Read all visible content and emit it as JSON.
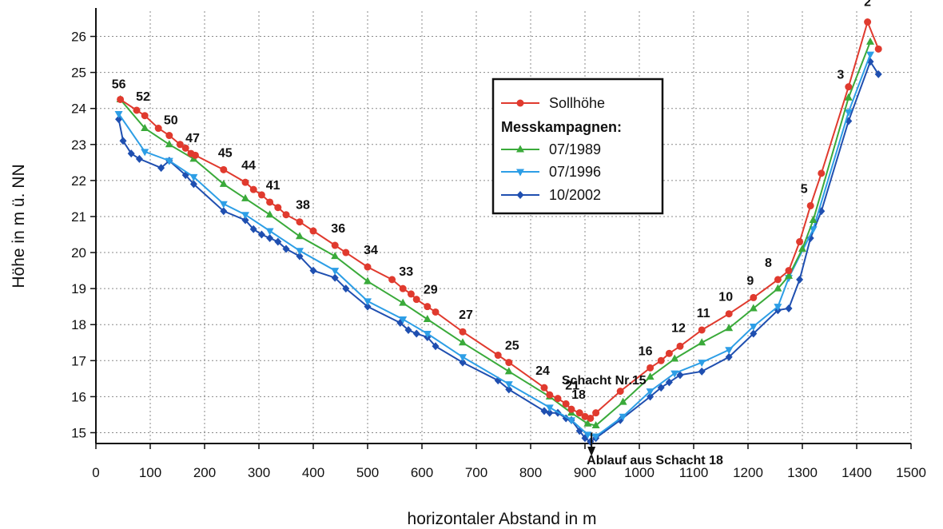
{
  "chart_data": {
    "type": "line",
    "xlabel": "horizontaler Abstand in m",
    "ylabel": "Höhe in m ü. NN",
    "xlim": [
      0,
      1500
    ],
    "ylim": [
      14.7,
      26.7
    ],
    "x_ticks": [
      0,
      100,
      200,
      300,
      400,
      500,
      600,
      700,
      800,
      900,
      1000,
      1100,
      1200,
      1300,
      1400,
      1500
    ],
    "y_ticks": [
      15,
      16,
      17,
      18,
      19,
      20,
      21,
      22,
      23,
      24,
      25,
      26
    ],
    "grid": true,
    "legend_position": "top-center",
    "legend": {
      "heading": "Messkampagnen:",
      "entries": [
        "Sollhöhe",
        "07/1989",
        "07/1996",
        "10/2002"
      ]
    },
    "series": [
      {
        "name": "Sollhöhe",
        "color": "#e03a2e",
        "marker": "circle",
        "x": [
          45,
          75,
          90,
          115,
          135,
          155,
          165,
          175,
          183,
          235,
          275,
          290,
          305,
          320,
          335,
          350,
          375,
          400,
          440,
          460,
          500,
          545,
          565,
          580,
          590,
          610,
          625,
          675,
          740,
          760,
          825,
          835,
          850,
          865,
          875,
          890,
          900,
          910,
          920,
          965,
          1020,
          1040,
          1055,
          1075,
          1115,
          1165,
          1210,
          1255,
          1275,
          1295,
          1315,
          1335,
          1385,
          1420,
          1440
        ],
        "y": [
          24.25,
          23.95,
          23.8,
          23.45,
          23.25,
          23.0,
          22.9,
          22.75,
          22.7,
          22.3,
          21.95,
          21.75,
          21.6,
          21.4,
          21.25,
          21.05,
          20.85,
          20.6,
          20.2,
          20.0,
          19.6,
          19.25,
          19.0,
          18.85,
          18.7,
          18.5,
          18.35,
          17.8,
          17.15,
          16.95,
          16.25,
          16.05,
          15.95,
          15.8,
          15.65,
          15.55,
          15.45,
          15.4,
          15.55,
          16.15,
          16.8,
          17.0,
          17.2,
          17.4,
          17.85,
          18.3,
          18.75,
          19.25,
          19.5,
          20.3,
          21.3,
          22.2,
          24.6,
          26.4,
          25.65
        ]
      },
      {
        "name": "07/1989",
        "color": "#3aaa3a",
        "marker": "triangle-up",
        "x": [
          45,
          90,
          135,
          180,
          235,
          275,
          320,
          375,
          440,
          500,
          565,
          610,
          675,
          760,
          835,
          875,
          905,
          920,
          970,
          1020,
          1065,
          1115,
          1165,
          1210,
          1255,
          1275,
          1300,
          1320,
          1385,
          1425
        ],
        "y": [
          24.25,
          23.45,
          23.0,
          22.6,
          21.9,
          21.5,
          21.05,
          20.45,
          19.9,
          19.2,
          18.6,
          18.15,
          17.5,
          16.7,
          16.0,
          15.55,
          15.25,
          15.2,
          15.85,
          16.55,
          17.05,
          17.5,
          17.9,
          18.45,
          19.0,
          19.35,
          20.1,
          20.9,
          24.3,
          25.85
        ]
      },
      {
        "name": "07/1996",
        "color": "#2d9ee6",
        "marker": "triangle-down",
        "x": [
          42,
          90,
          135,
          180,
          235,
          275,
          320,
          375,
          440,
          500,
          565,
          610,
          675,
          760,
          835,
          875,
          905,
          920,
          970,
          1020,
          1065,
          1115,
          1165,
          1210,
          1255,
          1275,
          1320,
          1385,
          1425
        ],
        "y": [
          23.85,
          22.8,
          22.55,
          22.1,
          21.35,
          21.05,
          20.6,
          20.05,
          19.5,
          18.65,
          18.15,
          17.75,
          17.1,
          16.35,
          15.7,
          15.35,
          14.95,
          14.9,
          15.45,
          16.15,
          16.65,
          16.95,
          17.3,
          17.95,
          18.5,
          19.3,
          20.65,
          23.9,
          25.5
        ]
      },
      {
        "name": "10/2002",
        "color": "#1f4fb0",
        "marker": "diamond",
        "x": [
          42,
          50,
          65,
          80,
          120,
          135,
          165,
          180,
          235,
          275,
          290,
          305,
          320,
          335,
          350,
          375,
          400,
          440,
          460,
          500,
          560,
          575,
          590,
          610,
          625,
          675,
          740,
          760,
          825,
          835,
          850,
          865,
          875,
          890,
          900,
          910,
          920,
          965,
          1020,
          1040,
          1055,
          1075,
          1115,
          1165,
          1210,
          1255,
          1275,
          1295,
          1315,
          1335,
          1385,
          1425,
          1440
        ],
        "y": [
          23.7,
          23.1,
          22.75,
          22.6,
          22.35,
          22.55,
          22.15,
          21.9,
          21.15,
          20.9,
          20.65,
          20.5,
          20.4,
          20.3,
          20.1,
          19.9,
          19.5,
          19.3,
          19.0,
          18.5,
          18.05,
          17.85,
          17.75,
          17.65,
          17.4,
          16.95,
          16.45,
          16.2,
          15.6,
          15.55,
          15.55,
          15.4,
          15.35,
          15.05,
          14.85,
          14.75,
          14.85,
          15.35,
          16.0,
          16.25,
          16.4,
          16.6,
          16.7,
          17.1,
          17.75,
          18.4,
          18.45,
          19.25,
          20.4,
          21.15,
          23.65,
          25.3,
          24.95
        ]
      }
    ],
    "annotations": [
      {
        "text": "56",
        "x": 45,
        "y": 24.25
      },
      {
        "text": "52",
        "x": 75,
        "y": 23.95
      },
      {
        "text": "50",
        "x": 135,
        "y": 23.25
      },
      {
        "text": "47",
        "x": 175,
        "y": 22.75
      },
      {
        "text": "45",
        "x": 235,
        "y": 22.3
      },
      {
        "text": "44",
        "x": 275,
        "y": 21.95
      },
      {
        "text": "41",
        "x": 320,
        "y": 21.4
      },
      {
        "text": "38",
        "x": 375,
        "y": 20.85
      },
      {
        "text": "36",
        "x": 440,
        "y": 20.2
      },
      {
        "text": "34",
        "x": 500,
        "y": 19.6
      },
      {
        "text": "33",
        "x": 565,
        "y": 19.0
      },
      {
        "text": "29",
        "x": 610,
        "y": 18.5
      },
      {
        "text": "27",
        "x": 675,
        "y": 17.8
      },
      {
        "text": "25",
        "x": 760,
        "y": 16.95
      },
      {
        "text": "24",
        "x": 825,
        "y": 16.25
      },
      {
        "text": "21",
        "x": 865,
        "y": 15.8
      },
      {
        "text": "18",
        "x": 900,
        "y": 15.45
      },
      {
        "text": "Schacht Nr.15",
        "x": 935,
        "y": 15.5
      },
      {
        "text": "16",
        "x": 1020,
        "y": 16.8
      },
      {
        "text": "12",
        "x": 1075,
        "y": 17.4
      },
      {
        "text": "11",
        "x": 1115,
        "y": 17.85
      },
      {
        "text": "10",
        "x": 1165,
        "y": 18.3
      },
      {
        "text": "9",
        "x": 1210,
        "y": 18.75
      },
      {
        "text": "8",
        "x": 1255,
        "y": 19.25
      },
      {
        "text": "5",
        "x": 1315,
        "y": 21.3
      },
      {
        "text": "3",
        "x": 1385,
        "y": 24.6
      },
      {
        "text": "2",
        "x": 1420,
        "y": 26.4
      },
      {
        "text": "Ablauf aus Schacht 18",
        "x": 912,
        "y": 14.7
      }
    ]
  }
}
